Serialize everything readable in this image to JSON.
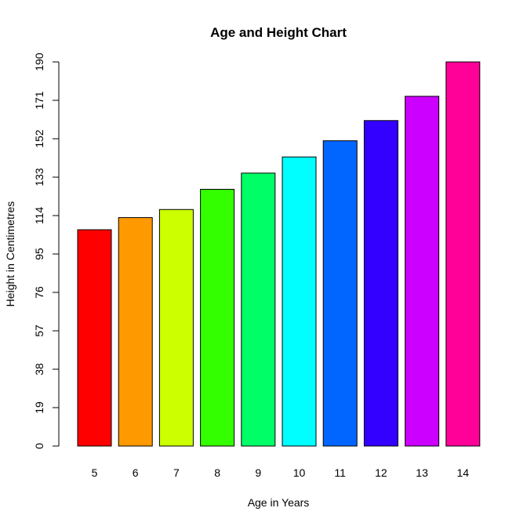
{
  "chart_data": {
    "type": "bar",
    "title": "Age and Height Chart",
    "xlabel": "Age in Years",
    "ylabel": "Height in Centimetres",
    "categories": [
      "5",
      "6",
      "7",
      "8",
      "9",
      "10",
      "11",
      "12",
      "13",
      "14"
    ],
    "values": [
      107,
      113,
      117,
      127,
      135,
      143,
      151,
      161,
      173,
      190
    ],
    "colors": [
      "#FF0000",
      "#FF9900",
      "#CCFF00",
      "#33FF00",
      "#00FF66",
      "#00FFFF",
      "#0066FF",
      "#3300FF",
      "#CC00FF",
      "#FF0099"
    ],
    "yticks": [
      0,
      19,
      38,
      57,
      76,
      95,
      114,
      133,
      152,
      171,
      190
    ],
    "ylim": [
      0,
      190
    ],
    "grid": false,
    "legend": "none"
  }
}
